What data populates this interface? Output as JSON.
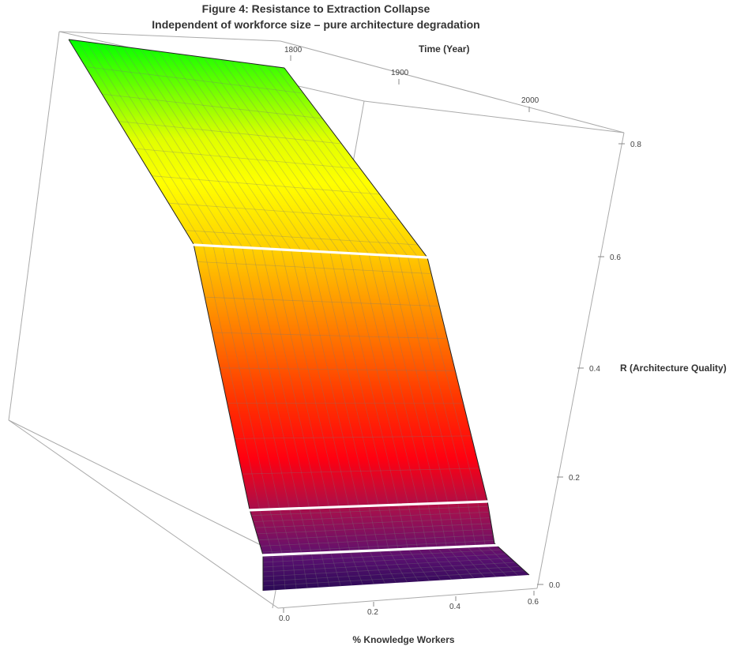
{
  "chart_data": {
    "type": "surface3d",
    "title": "Figure 4: Resistance to Extraction Collapse",
    "subtitle": "Independent of workforce size – pure architecture degradation",
    "x_axis": {
      "label": "% Knowledge Workers",
      "ticks": [
        "0.0",
        "0.2",
        "0.4",
        "0.6"
      ],
      "range": [
        0,
        0.6
      ]
    },
    "time_axis": {
      "label": "Time (Year)",
      "ticks": [
        "1800",
        "1900",
        "2000"
      ]
    },
    "z_axis": {
      "label": "R (Architecture Quality)",
      "ticks": [
        "0.0",
        "0.2",
        "0.4",
        "0.6",
        "0.8"
      ],
      "range": [
        0,
        0.8
      ]
    },
    "surface_profile": {
      "description_points": [
        {
          "t": 0.0,
          "R": 0.8
        },
        {
          "t": 0.38,
          "R": 0.62
        },
        {
          "t": 0.8,
          "R": 0.1
        },
        {
          "t": 0.9,
          "R": 0.05
        },
        {
          "t": 1.0,
          "R": 0.0
        }
      ],
      "threshold_levels_R": [
        0.62,
        0.1,
        0.05
      ],
      "colormap": [
        "#3a0a5c",
        "#7a1560",
        "#c81440",
        "#ff1a00",
        "#ff7a00",
        "#ffc400",
        "#ffff00",
        "#e4ff00",
        "#00ff00"
      ]
    },
    "grid": false,
    "legend": "none"
  }
}
